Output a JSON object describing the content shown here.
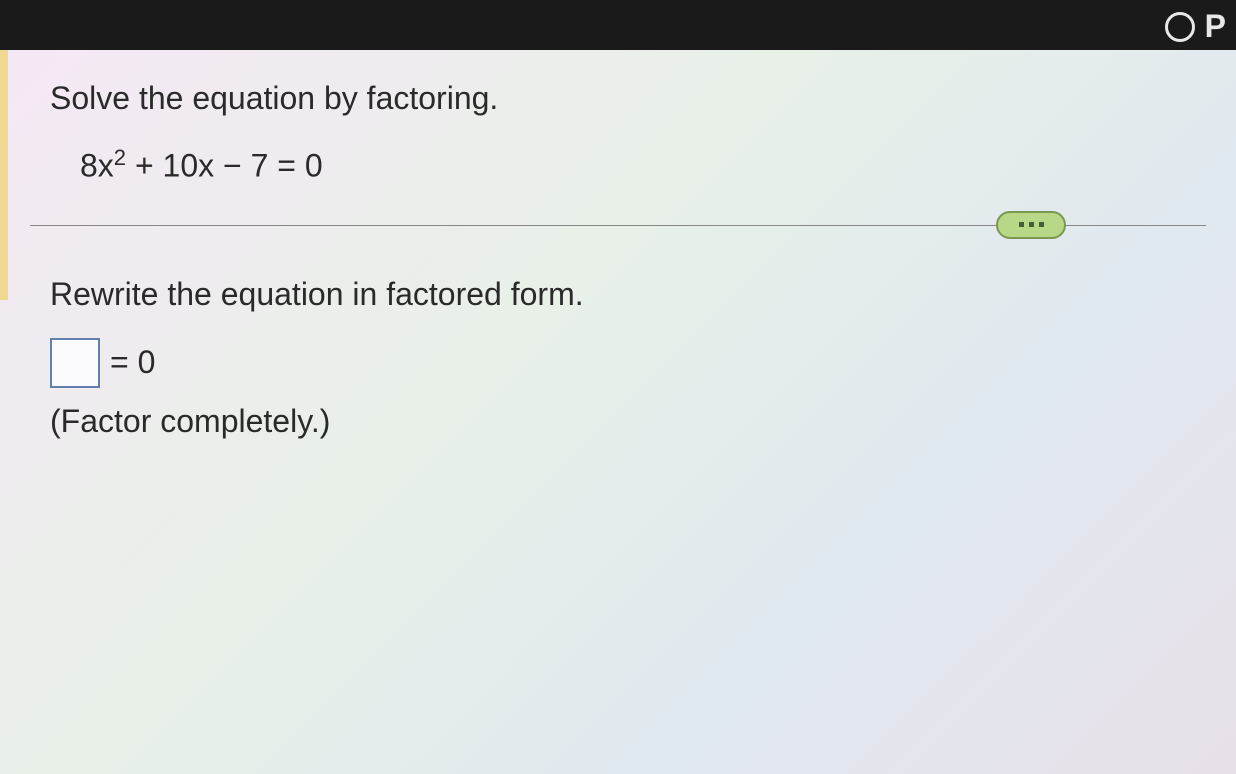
{
  "topbar": {
    "right_label": "P",
    "colors": {
      "background": "#1a1a1a",
      "icon_border": "#e8e8e8",
      "text": "#e8e8e8"
    }
  },
  "problem": {
    "prompt": "Solve the equation by factoring.",
    "equation_html": "8x<sup>2</sup> + 10x − 7 = 0",
    "equation_plain": "8x^2 + 10x - 7 = 0"
  },
  "answer_section": {
    "sub_prompt": "Rewrite the equation in factored form.",
    "equals_label": "= 0",
    "hint": "(Factor completely.)",
    "input_value": ""
  },
  "styling": {
    "content_background_gradient": [
      "#f5e8f5",
      "#e8f0e8",
      "#e0e8f0",
      "#e8e0e8"
    ],
    "text_color": "#2a2a2a",
    "answer_box_border": "#6080b0",
    "answer_box_bg": "#fafaff",
    "pill_bg": "#b8d888",
    "pill_border": "#7a9850",
    "pill_dot": "#4a5a3a",
    "left_margin_color": "#f0d890",
    "divider_color": "#888888",
    "font_size_main": 32
  }
}
